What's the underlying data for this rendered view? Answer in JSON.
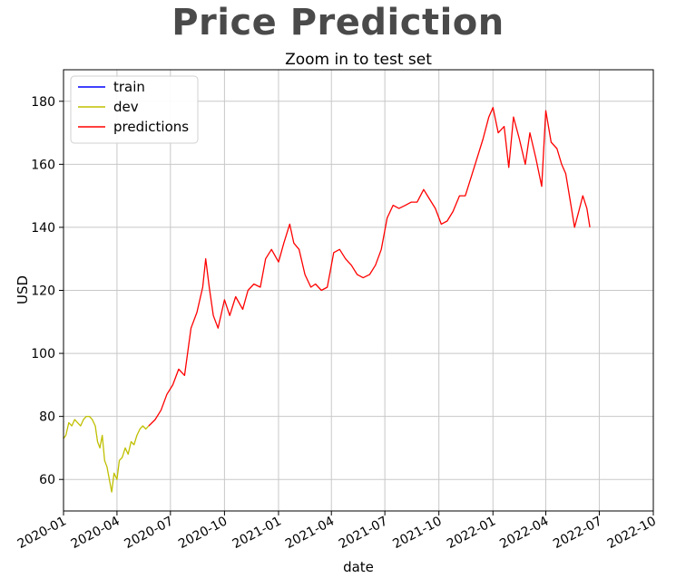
{
  "header": {
    "title": "Price Prediction"
  },
  "chart_data": {
    "type": "line",
    "title": "Zoom in to test set",
    "xlabel": "date",
    "ylabel": "USD",
    "xlim": [
      "2020-01-01",
      "2022-10-01"
    ],
    "ylim": [
      50,
      190
    ],
    "grid": true,
    "legend_placement": "top-left",
    "x_ticks": [
      "2020-01",
      "2020-04",
      "2020-07",
      "2020-10",
      "2021-01",
      "2021-04",
      "2021-07",
      "2021-10",
      "2022-01",
      "2022-04",
      "2022-07",
      "2022-10"
    ],
    "y_ticks": [
      60,
      80,
      100,
      120,
      140,
      160,
      180
    ],
    "series": [
      {
        "name": "train",
        "color": "#0000ff",
        "x": [],
        "y": []
      },
      {
        "name": "dev",
        "color": "#bfbf00",
        "x": [
          "2020-01-01",
          "2020-01-05",
          "2020-01-10",
          "2020-01-15",
          "2020-01-20",
          "2020-01-25",
          "2020-01-30",
          "2020-02-04",
          "2020-02-09",
          "2020-02-14",
          "2020-02-19",
          "2020-02-24",
          "2020-02-28",
          "2020-03-03",
          "2020-03-07",
          "2020-03-11",
          "2020-03-15",
          "2020-03-19",
          "2020-03-23",
          "2020-03-27",
          "2020-04-01",
          "2020-04-05",
          "2020-04-10",
          "2020-04-15",
          "2020-04-20",
          "2020-04-25",
          "2020-04-30",
          "2020-05-05",
          "2020-05-10",
          "2020-05-15",
          "2020-05-20",
          "2020-05-25"
        ],
        "y": [
          73,
          74,
          78,
          77,
          79,
          78,
          77,
          79,
          80,
          80,
          79,
          77,
          72,
          70,
          74,
          66,
          64,
          60,
          56,
          62,
          60,
          66,
          67,
          70,
          68,
          72,
          71,
          74,
          76,
          77,
          76,
          77
        ]
      },
      {
        "name": "predictions",
        "color": "#ff0000",
        "x": [
          "2020-05-25",
          "2020-06-05",
          "2020-06-15",
          "2020-06-25",
          "2020-07-05",
          "2020-07-15",
          "2020-07-25",
          "2020-08-05",
          "2020-08-15",
          "2020-08-25",
          "2020-08-30",
          "2020-09-05",
          "2020-09-12",
          "2020-09-20",
          "2020-10-01",
          "2020-10-10",
          "2020-10-20",
          "2020-11-01",
          "2020-11-10",
          "2020-11-20",
          "2020-12-01",
          "2020-12-10",
          "2020-12-20",
          "2021-01-01",
          "2021-01-10",
          "2021-01-20",
          "2021-01-27",
          "2021-02-05",
          "2021-02-15",
          "2021-02-25",
          "2021-03-05",
          "2021-03-15",
          "2021-03-25",
          "2021-04-05",
          "2021-04-15",
          "2021-04-25",
          "2021-05-05",
          "2021-05-15",
          "2021-05-25",
          "2021-06-05",
          "2021-06-15",
          "2021-06-25",
          "2021-07-05",
          "2021-07-15",
          "2021-07-25",
          "2021-08-05",
          "2021-08-15",
          "2021-08-25",
          "2021-09-05",
          "2021-09-15",
          "2021-09-25",
          "2021-10-05",
          "2021-10-15",
          "2021-10-25",
          "2021-11-05",
          "2021-11-15",
          "2021-11-25",
          "2021-12-05",
          "2021-12-15",
          "2021-12-25",
          "2022-01-01",
          "2022-01-10",
          "2022-01-20",
          "2022-01-28",
          "2022-02-05",
          "2022-02-15",
          "2022-02-25",
          "2022-03-05",
          "2022-03-15",
          "2022-03-25",
          "2022-04-01",
          "2022-04-10",
          "2022-04-20",
          "2022-04-28",
          "2022-05-05",
          "2022-05-12",
          "2022-05-20",
          "2022-05-27",
          "2022-06-03",
          "2022-06-10",
          "2022-06-15"
        ],
        "y": [
          77,
          79,
          82,
          87,
          90,
          95,
          93,
          108,
          113,
          121,
          130,
          121,
          112,
          108,
          117,
          112,
          118,
          114,
          120,
          122,
          121,
          130,
          133,
          129,
          135,
          141,
          135,
          133,
          125,
          121,
          122,
          120,
          121,
          132,
          133,
          130,
          128,
          125,
          124,
          125,
          128,
          133,
          143,
          147,
          146,
          147,
          148,
          148,
          152,
          149,
          146,
          141,
          142,
          145,
          150,
          150,
          156,
          162,
          168,
          175,
          178,
          170,
          172,
          159,
          175,
          168,
          160,
          170,
          162,
          153,
          177,
          167,
          165,
          160,
          157,
          149,
          140,
          145,
          150,
          146,
          140
        ]
      }
    ]
  }
}
